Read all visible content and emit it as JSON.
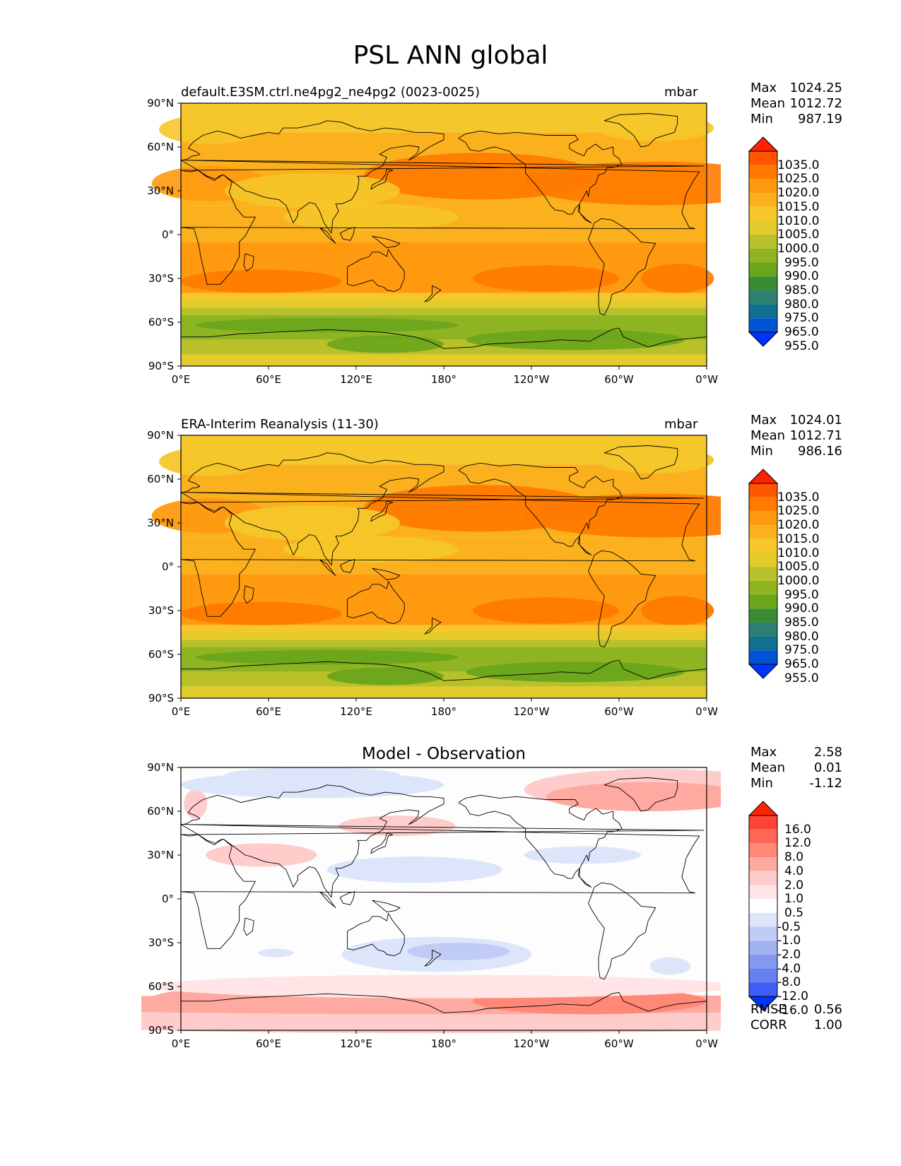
{
  "figure_title": "PSL ANN global",
  "axes": {
    "lat_ticks": [
      "90°N",
      "60°N",
      "30°N",
      "0°",
      "30°S",
      "60°S",
      "90°S"
    ],
    "lon_ticks": [
      "0°E",
      "60°E",
      "120°E",
      "180°",
      "120°W",
      "60°W",
      "0°W"
    ]
  },
  "panels": [
    {
      "id": "model",
      "title_left": "default.E3SM.ctrl.ne4pg2_ne4pg2 (0023-0025)",
      "title_right": "mbar",
      "title_center": "",
      "stats": [
        {
          "label": "Max",
          "value": "1024.25"
        },
        {
          "label": "Mean",
          "value": "1012.72"
        },
        {
          "label": "Min",
          "value": "987.19"
        }
      ],
      "colorbar_labels": [
        "1035.0",
        "1025.0",
        "1020.0",
        "1015.0",
        "1010.0",
        "1005.0",
        "1000.0",
        "995.0",
        "990.0",
        "985.0",
        "980.0",
        "975.0",
        "965.0",
        "955.0"
      ]
    },
    {
      "id": "obs",
      "title_left": "ERA-Interim Reanalysis (11-30)",
      "title_right": "mbar",
      "title_center": "",
      "stats": [
        {
          "label": "Max",
          "value": "1024.01"
        },
        {
          "label": "Mean",
          "value": "1012.71"
        },
        {
          "label": "Min",
          "value": "986.16"
        }
      ],
      "colorbar_labels": [
        "1035.0",
        "1025.0",
        "1020.0",
        "1015.0",
        "1010.0",
        "1005.0",
        "1000.0",
        "995.0",
        "990.0",
        "985.0",
        "980.0",
        "975.0",
        "965.0",
        "955.0"
      ]
    },
    {
      "id": "diff",
      "title_left": "",
      "title_right": "",
      "title_center": "Model - Observation",
      "stats": [
        {
          "label": "Max",
          "value": "2.58"
        },
        {
          "label": "Mean",
          "value": "0.01"
        },
        {
          "label": "Min",
          "value": "-1.12"
        }
      ],
      "colorbar_labels": [
        "16.0",
        "12.0",
        "8.0",
        "4.0",
        "2.0",
        "1.0",
        "0.5",
        "-0.5",
        "-1.0",
        "-2.0",
        "-4.0",
        "-8.0",
        "-12.0",
        "-16.0"
      ],
      "metrics": [
        {
          "label": "RMSE",
          "value": "0.56"
        },
        {
          "label": "CORR",
          "value": "1.00"
        }
      ]
    }
  ],
  "colors": {
    "psl_scale": [
      "#ff2200",
      "#ff5500",
      "#ff7a00",
      "#ff9a10",
      "#fbb11d",
      "#f6c72a",
      "#e2cb2a",
      "#b8c02a",
      "#8fb421",
      "#6aa51b",
      "#3a8c32",
      "#2e7f73",
      "#10708f",
      "#0055d5",
      "#0033ff"
    ],
    "diff_scale": [
      "#ff2200",
      "#ff4433",
      "#ff6655",
      "#ff8877",
      "#ffaaa0",
      "#ffcccc",
      "#ffe5e5",
      "#ffffff",
      "#dde5fb",
      "#c0ccf6",
      "#a3b2f2",
      "#8598ef",
      "#6680f0",
      "#3d5df6",
      "#0033ff"
    ]
  }
}
